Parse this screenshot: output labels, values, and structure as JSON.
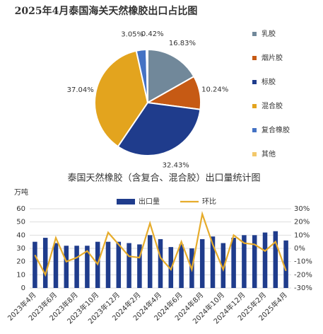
{
  "chart_data": [
    {
      "type": "pie",
      "title": "2025年4月泰国海关天然橡胶出口占比图",
      "categories": [
        "乳胶",
        "烟片胶",
        "标胶",
        "混合胶",
        "复合橡胶",
        "其他"
      ],
      "values": [
        16.83,
        10.24,
        32.43,
        37.04,
        3.05,
        0.42
      ],
      "value_labels": [
        "16.83%",
        "10.24%",
        "32.43%",
        "37.04%",
        "3.05%",
        "0.42%"
      ],
      "colors": [
        "#71889a",
        "#c65a14",
        "#1f3c8c",
        "#e3a41e",
        "#4472c4",
        "#f3c86a"
      ]
    },
    {
      "type": "bar-line",
      "title": "泰国天然橡胶（含复合、混合胶）出口量统计图",
      "ylabel": "万吨",
      "x": [
        "2023年4月",
        null,
        "2023年6月",
        null,
        "2023年8月",
        null,
        "2023年10月",
        null,
        "2023年12月",
        null,
        "2024年2月",
        null,
        "2024年4月",
        null,
        "2024年6月",
        null,
        "2024年8月",
        null,
        "2024年10月",
        null,
        "2024年12月",
        null,
        "2025年2月",
        null,
        "2025年4月"
      ],
      "series": [
        {
          "name": "出口量",
          "color": "#1f3c8c",
          "values": [
            35,
            38,
            34,
            32,
            32,
            32,
            35,
            35,
            35,
            34,
            33,
            40,
            37,
            31,
            33,
            30,
            37,
            39,
            34,
            38,
            40,
            40,
            42,
            43,
            36
          ]
        },
        {
          "name": "环比",
          "color": "#e6ac2c",
          "axis": "y2",
          "values": [
            -5,
            -20,
            8,
            -10,
            -7,
            -2,
            -12,
            12,
            3,
            -6,
            -7,
            19,
            -7,
            -16,
            5,
            -16,
            26,
            3,
            -16,
            10,
            4,
            3,
            -2,
            5,
            -17
          ]
        }
      ],
      "ylim": [
        0,
        60
      ],
      "yticks": [
        0,
        10,
        20,
        30,
        40,
        50,
        60
      ],
      "y2lim": [
        -30,
        30
      ],
      "y2ticks": [
        {
          "value": -30,
          "label": "-30%"
        },
        {
          "value": -20,
          "label": "-20%"
        },
        {
          "value": -10,
          "label": "-10%"
        },
        {
          "value": 0,
          "label": "0%"
        },
        {
          "value": 10,
          "label": "10%"
        },
        {
          "value": 20,
          "label": "20%"
        },
        {
          "value": 30,
          "label": "30%"
        }
      ],
      "grid": true
    }
  ]
}
